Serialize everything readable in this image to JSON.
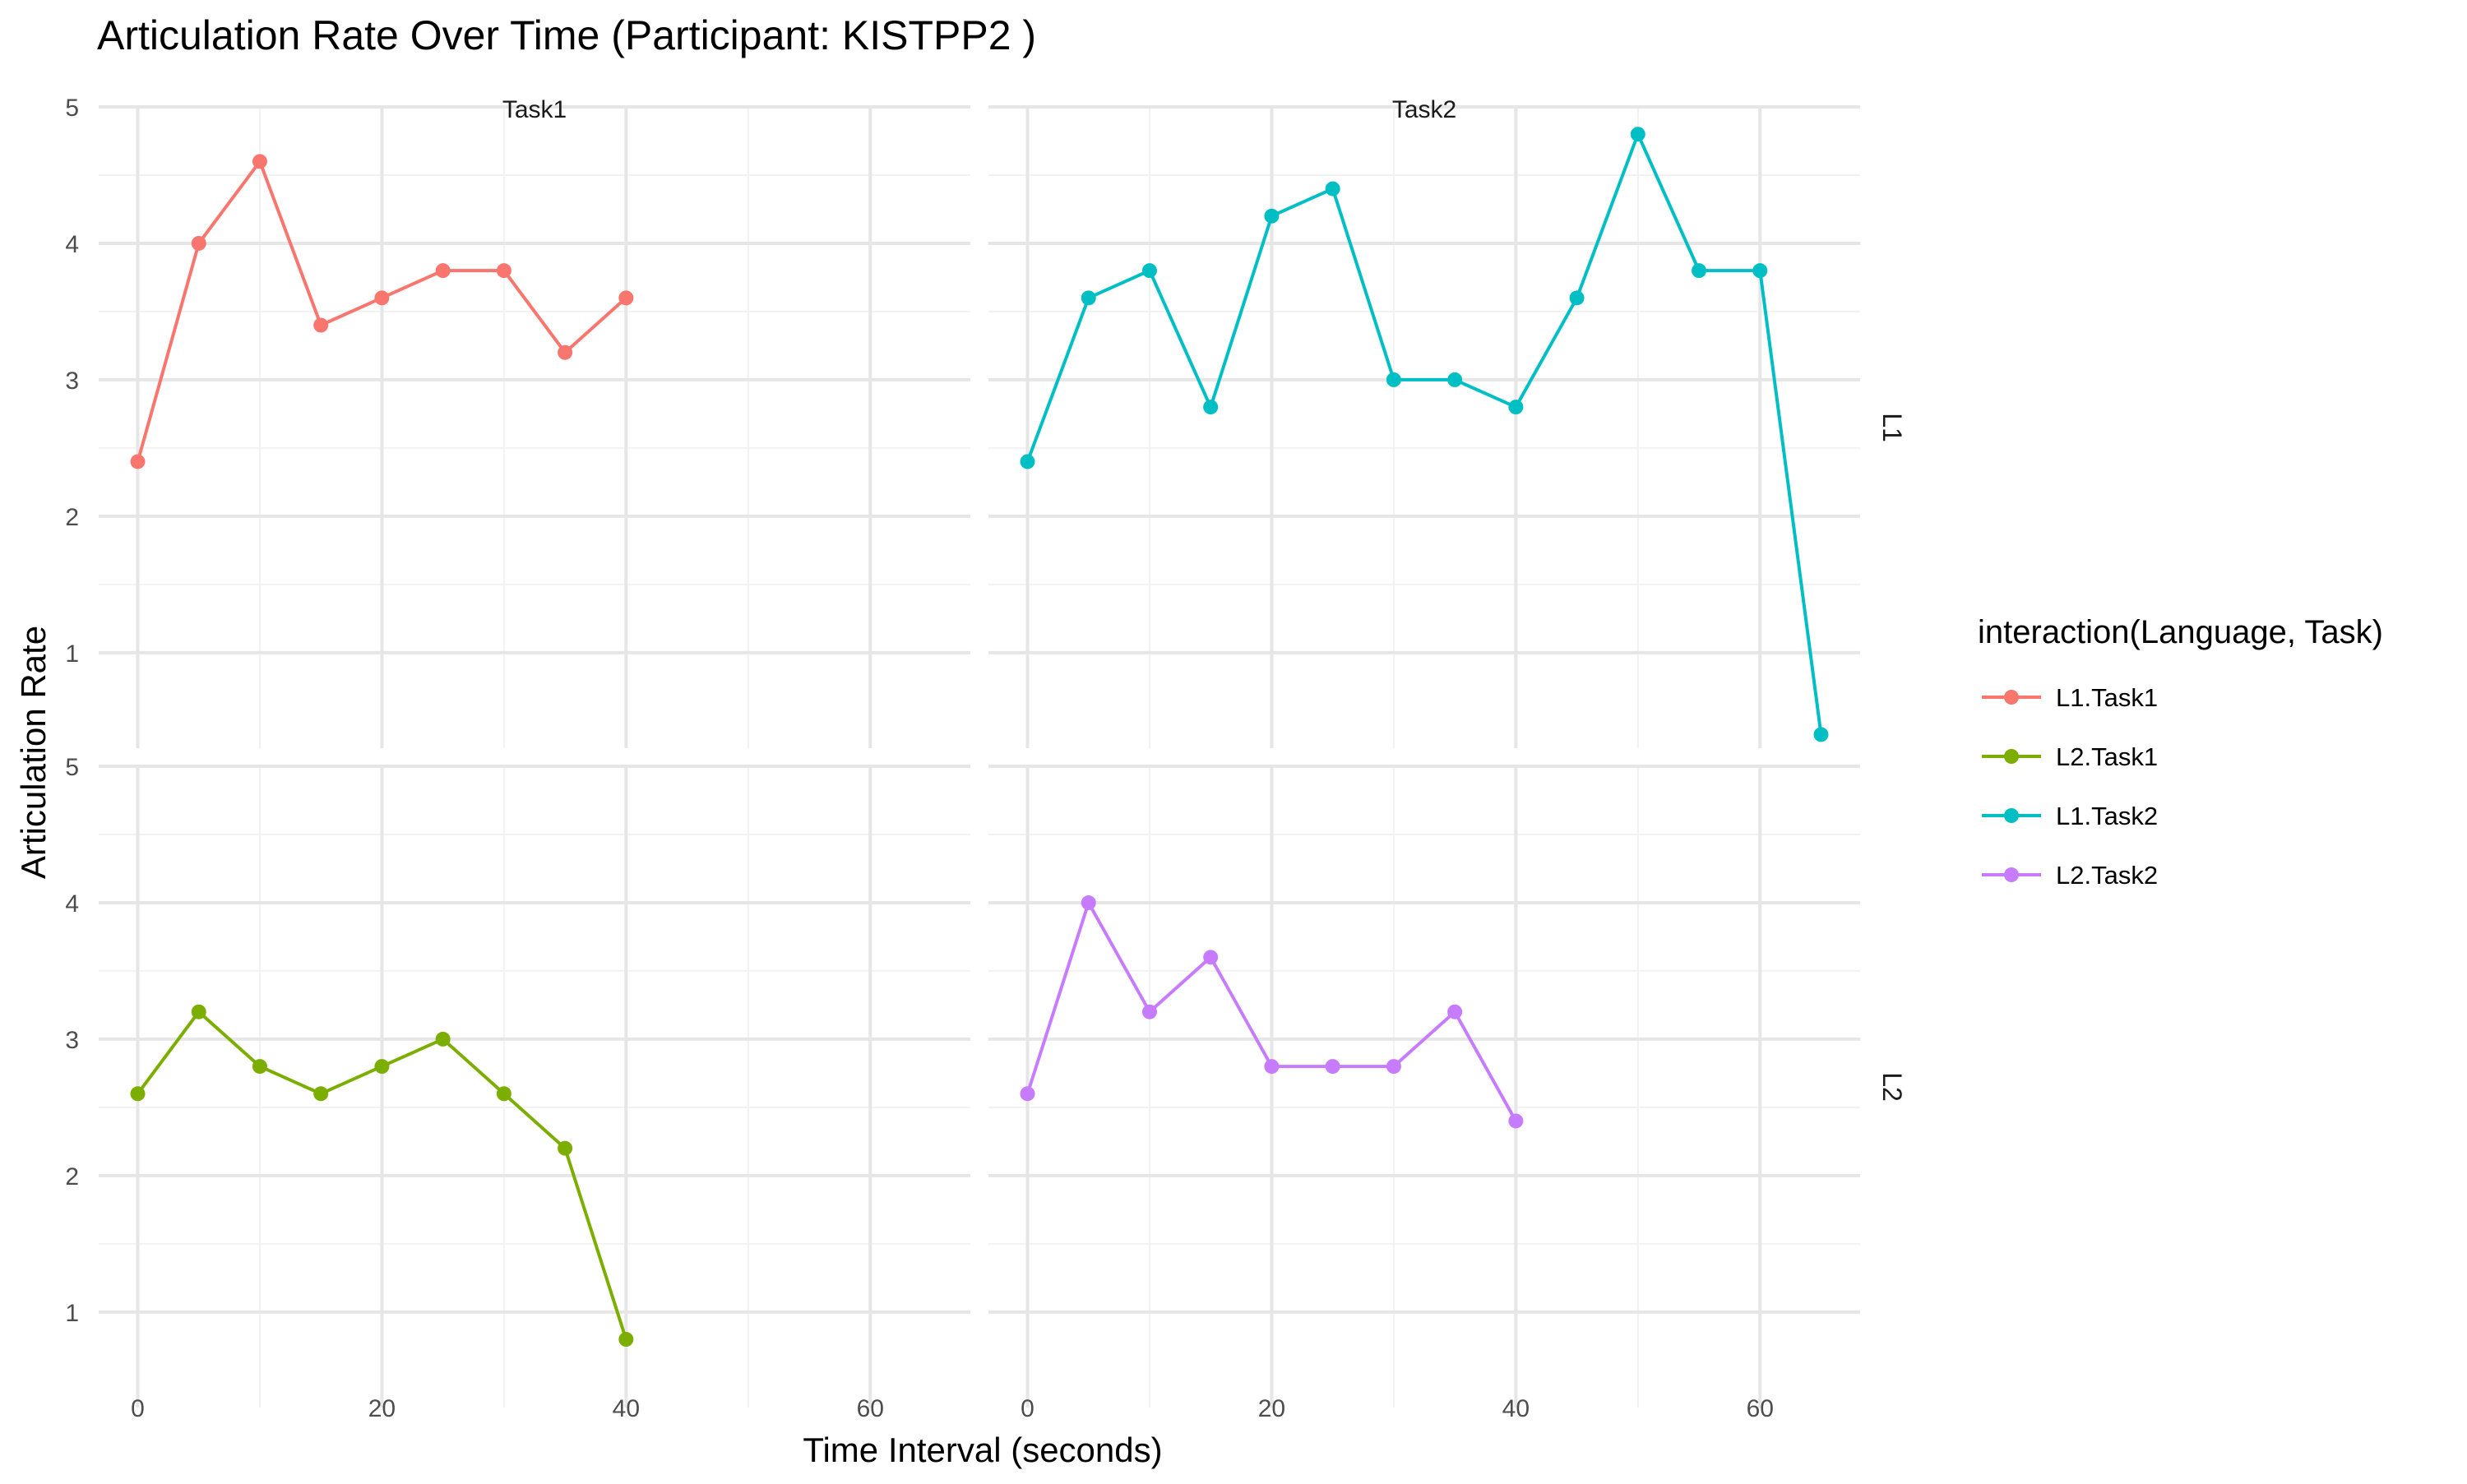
{
  "chart_data": {
    "type": "line",
    "title": "Articulation Rate Over Time (Participant: KISTPP2 )",
    "xlabel": "Time Interval (seconds)",
    "ylabel": "Articulation Rate",
    "xlim": [
      -3.2,
      68.2
    ],
    "ylim": [
      0.3,
      5.0
    ],
    "x_ticks": [
      0,
      20,
      40,
      60
    ],
    "y_ticks": [
      1,
      2,
      3,
      4,
      5
    ],
    "grid": true,
    "facet_columns": [
      "Task1",
      "Task2"
    ],
    "facet_rows": [
      "L1",
      "L2"
    ],
    "legend": {
      "title": "interaction(Language, Task)",
      "placement": "right",
      "entries": [
        "L1.Task1",
        "L2.Task1",
        "L1.Task2",
        "L2.Task2"
      ]
    },
    "series": [
      {
        "name": "L1.Task1",
        "color": "#F8766D",
        "facet_col": "Task1",
        "facet_row": "L1",
        "x": [
          0,
          5,
          10,
          15,
          20,
          25,
          30,
          35,
          40
        ],
        "values": [
          2.4,
          4.0,
          4.6,
          3.4,
          3.6,
          3.8,
          3.8,
          3.2,
          3.6
        ]
      },
      {
        "name": "L2.Task1",
        "color": "#7CAE00",
        "facet_col": "Task1",
        "facet_row": "L2",
        "x": [
          0,
          5,
          10,
          15,
          20,
          25,
          30,
          35,
          40
        ],
        "values": [
          2.6,
          3.2,
          2.8,
          2.6,
          2.8,
          3.0,
          2.6,
          2.2,
          0.8
        ]
      },
      {
        "name": "L1.Task2",
        "color": "#00BFC4",
        "facet_col": "Task2",
        "facet_row": "L1",
        "x": [
          0,
          5,
          10,
          15,
          20,
          25,
          30,
          35,
          40,
          45,
          50,
          55,
          60,
          65
        ],
        "values": [
          2.4,
          3.6,
          3.8,
          2.8,
          4.2,
          4.4,
          3.0,
          3.0,
          2.8,
          3.6,
          4.8,
          3.8,
          3.8,
          0.4
        ]
      },
      {
        "name": "L2.Task2",
        "color": "#C77CFF",
        "facet_col": "Task2",
        "facet_row": "L2",
        "x": [
          0,
          5,
          10,
          15,
          20,
          25,
          30,
          35,
          40
        ],
        "values": [
          2.6,
          4.0,
          3.2,
          3.6,
          2.8,
          2.8,
          2.8,
          3.2,
          2.4
        ]
      }
    ]
  }
}
